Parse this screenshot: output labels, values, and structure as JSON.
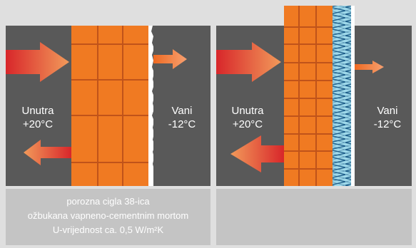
{
  "colors": {
    "background": "#dfdfdf",
    "panel": "#595959",
    "caption_panel": "#c4c4c4",
    "brick": "#f07a22",
    "mortar": "#c0531a",
    "insulation": "#9fd9ea",
    "arrow_start": "#d8262a",
    "arrow_end": "#f29a5a"
  },
  "left": {
    "inside_label": "Unutra",
    "inside_temp": "+20°C",
    "outside_label": "Vani",
    "outside_temp": "-12°C",
    "caption": [
      "porozna cigla 38-ica",
      "ožbukana vapneno-cementnim mortom",
      "U-vrijednost ca. 0,5 W/m²K"
    ]
  },
  "right": {
    "inside_label": "Unutra",
    "inside_temp": "+20°C",
    "outside_label": "Vani",
    "outside_temp": "-12°C"
  },
  "icons": {
    "heat_in": "arrow-right",
    "heat_out": "arrow-right",
    "heat_reflected": "arrow-left"
  }
}
